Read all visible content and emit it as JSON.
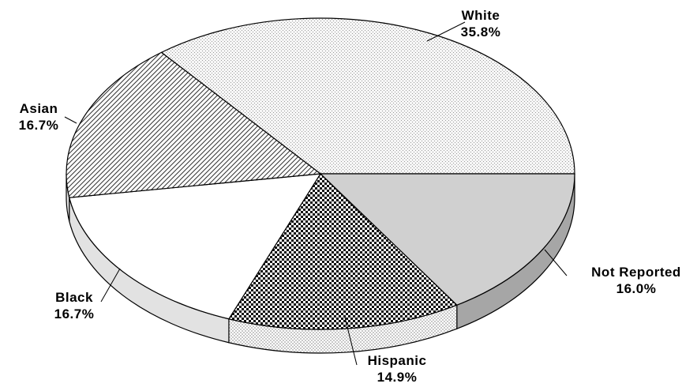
{
  "chart_data": {
    "type": "pie",
    "title": "",
    "slices": [
      {
        "label": "White",
        "pct_label": "35.8%",
        "value": 35.8,
        "pattern": "dots"
      },
      {
        "label": "Not Reported",
        "pct_label": "16.0%",
        "value": 16.0,
        "pattern": "solid-gray"
      },
      {
        "label": "Hispanic",
        "pct_label": "14.9%",
        "value": 14.9,
        "pattern": "checker"
      },
      {
        "label": "Black",
        "pct_label": "16.7%",
        "value": 16.7,
        "pattern": "blank"
      },
      {
        "label": "Asian",
        "pct_label": "16.7%",
        "value": 16.7,
        "pattern": "diagonal"
      }
    ],
    "style": "3d-perspective",
    "legend": "none"
  }
}
